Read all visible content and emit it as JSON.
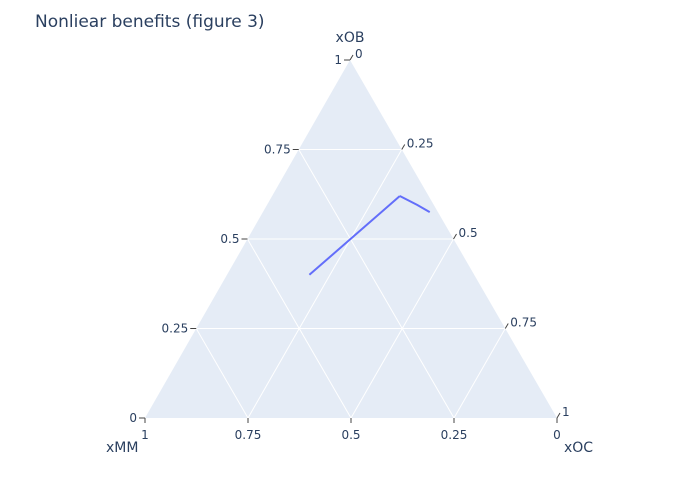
{
  "chart_data": {
    "type": "ternary-line",
    "title": "Nonliear benefits (figure 3)",
    "axes": {
      "a": {
        "title": "xOB",
        "ticks": [
          "0",
          "0.25",
          "0.5",
          "0.75",
          "1"
        ],
        "range": [
          0,
          1
        ]
      },
      "b": {
        "title": "xMM",
        "ticks": [
          "0",
          "0.25",
          "0.5",
          "0.75",
          "1"
        ],
        "range": [
          0,
          1
        ]
      },
      "c": {
        "title": "xOC",
        "ticks": [
          "0",
          "0.25",
          "0.5",
          "0.75",
          "1"
        ],
        "range": [
          0,
          1
        ]
      }
    },
    "grid": true,
    "series": [
      {
        "color": "#636efa",
        "points": [
          {
            "a": 0.4,
            "b": 0.4,
            "c": 0.2
          },
          {
            "a": 0.5,
            "b": 0.25,
            "c": 0.25
          },
          {
            "a": 0.62,
            "b": 0.07,
            "c": 0.31
          }
        ]
      },
      {
        "color": "#636efa",
        "points": [
          {
            "a": 0.62,
            "b": 0.07,
            "c": 0.31
          },
          {
            "a": 0.595,
            "b": 0.04,
            "c": 0.365
          },
          {
            "a": 0.575,
            "b": 0.02,
            "c": 0.405
          }
        ]
      }
    ],
    "colors": {
      "plot_background": "#e5ecf6",
      "grid": "#ffffff",
      "text": "#2a3f5f",
      "tick_mark": "#444444"
    }
  }
}
